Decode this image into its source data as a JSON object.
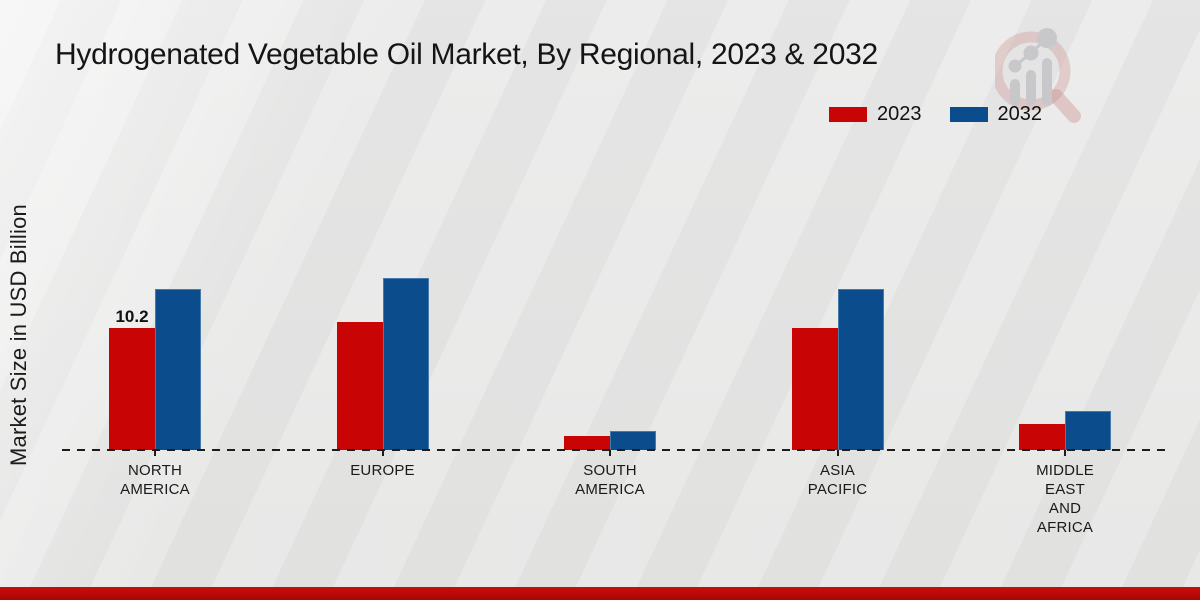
{
  "page": {
    "title": "Hydrogenated Vegetable Oil Market, By Regional, 2023 & 2032",
    "y_axis_label": "Market Size in USD Billion"
  },
  "colors": {
    "series_2023": "#c90404",
    "series_2032": "#0b4c8c",
    "baseline": "#1c1c1c",
    "bottom_banner": "#b30909",
    "watermark_gray": "#c3c3c6",
    "watermark_pink": "rgba(198,120,120,0.33)"
  },
  "legend": {
    "position": "top-right",
    "items": [
      {
        "label": "2023",
        "color": "#c90404"
      },
      {
        "label": "2032",
        "color": "#0b4c8c"
      }
    ]
  },
  "chart_data": {
    "type": "bar",
    "title": "Hydrogenated Vegetable Oil Market, By Regional, 2023 & 2032",
    "xlabel": "",
    "ylabel": "Market Size in USD Billion",
    "ylim": [
      0,
      16
    ],
    "grid": false,
    "legend_position": "top-right",
    "categories": [
      "NORTH AMERICA",
      "EUROPE",
      "SOUTH AMERICA",
      "ASIA PACIFIC",
      "MIDDLE EAST AND AFRICA"
    ],
    "category_lines": [
      [
        "NORTH",
        "AMERICA"
      ],
      [
        "EUROPE"
      ],
      [
        "SOUTH",
        "AMERICA"
      ],
      [
        "ASIA",
        "PACIFIC"
      ],
      [
        "MIDDLE",
        "EAST",
        "AND",
        "AFRICA"
      ]
    ],
    "series": [
      {
        "name": "2023",
        "color": "#c90404",
        "values": [
          10.2,
          10.7,
          1.2,
          10.2,
          2.2
        ]
      },
      {
        "name": "2032",
        "color": "#0b4c8c",
        "values": [
          13.5,
          14.4,
          1.6,
          13.5,
          3.3
        ]
      }
    ],
    "annotations": [
      {
        "category_index": 0,
        "series_index": 0,
        "text": "10.2"
      }
    ]
  },
  "watermark": {
    "icon": "magnifier-bar-chart-logo"
  }
}
